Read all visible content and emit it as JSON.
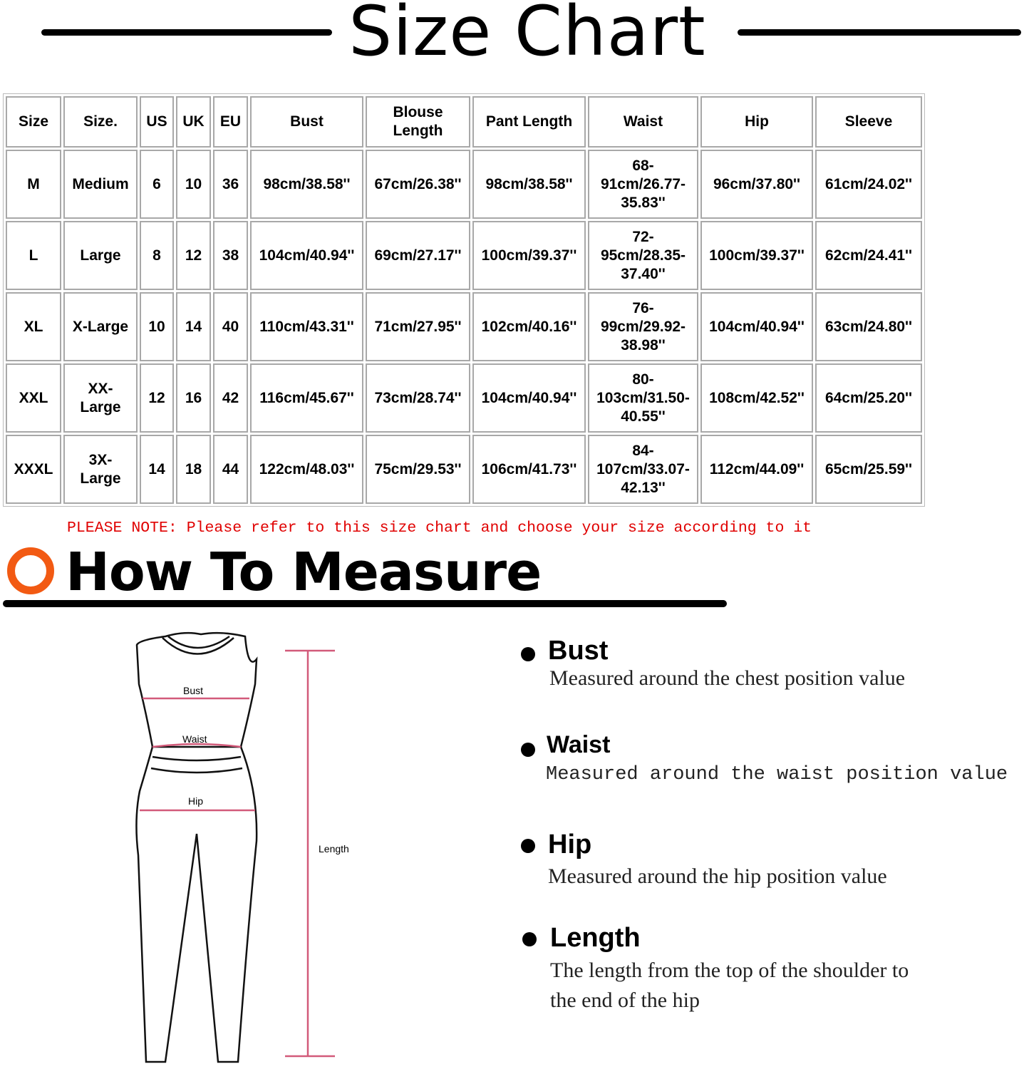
{
  "title": "Size Chart",
  "table": {
    "headers": [
      "Size",
      "Size.",
      "US",
      "UK",
      "EU",
      "Bust",
      "Blouse Length",
      "Pant Length",
      "Waist",
      "Hip",
      "Sleeve"
    ],
    "rows": [
      [
        "M",
        "Medium",
        "6",
        "10",
        "36",
        "98cm/38.58''",
        "67cm/26.38''",
        "98cm/38.58''",
        "68-91cm/26.77-35.83''",
        "96cm/37.80''",
        "61cm/24.02''"
      ],
      [
        "L",
        "Large",
        "8",
        "12",
        "38",
        "104cm/40.94''",
        "69cm/27.17''",
        "100cm/39.37''",
        "72-95cm/28.35-37.40''",
        "100cm/39.37''",
        "62cm/24.41''"
      ],
      [
        "XL",
        "X-Large",
        "10",
        "14",
        "40",
        "110cm/43.31''",
        "71cm/27.95''",
        "102cm/40.16''",
        "76-99cm/29.92-38.98''",
        "104cm/40.94''",
        "63cm/24.80''"
      ],
      [
        "XXL",
        "XX-Large",
        "12",
        "16",
        "42",
        "116cm/45.67''",
        "73cm/28.74''",
        "104cm/40.94''",
        "80-103cm/31.50-40.55''",
        "108cm/42.52''",
        "64cm/25.20''"
      ],
      [
        "XXXL",
        "3X-Large",
        "14",
        "18",
        "44",
        "122cm/48.03''",
        "75cm/29.53''",
        "106cm/41.73''",
        "84-107cm/33.07-42.13''",
        "112cm/44.09''",
        "65cm/25.59''"
      ]
    ]
  },
  "note": "PLEASE NOTE: Please refer to this size chart and choose your size according to it",
  "how_to": {
    "heading": "How To Measure",
    "icon": "orange-ring-icon",
    "accent": "#f25a13",
    "figure_labels": {
      "bust": "Bust",
      "waist": "Waist",
      "hip": "Hip",
      "length": "Length"
    },
    "items": [
      {
        "title": "Bust",
        "desc": "Measured around the chest position value"
      },
      {
        "title": "Waist",
        "desc": "Measured around the waist position value"
      },
      {
        "title": "Hip",
        "desc": "Measured around the  hip position value"
      },
      {
        "title": "Length",
        "desc": "The length from the top of the shoulder to",
        "desc2": "the end of the hip"
      }
    ]
  }
}
